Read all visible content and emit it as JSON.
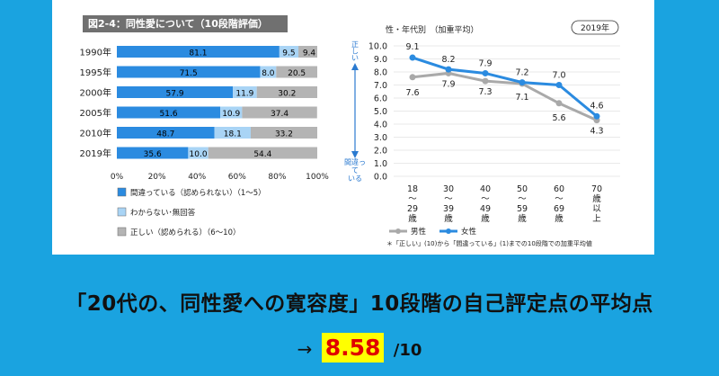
{
  "left_figure": {
    "title": "図2-4：同性愛について（10段階評価）"
  },
  "right_figure": {
    "header": "性・年代別　（加重平均）",
    "year_badge": "2019年",
    "note": "＊「正しい」(10)から「間違っている」(1)までの10段階での加重平均値"
  },
  "headline": "「20代の、同性愛への寛容度」10段階の自己評定点の平均点",
  "score": {
    "arrow": "→",
    "value": "8.58",
    "unit": "/10"
  },
  "colors": {
    "background": "#1aa3e0",
    "wrong": "#2b8be0",
    "unknown": "#a9d4f5",
    "correct": "#b4b4b4",
    "male": "#a9a9a9",
    "female": "#2b8be0",
    "highlight": "#ffff00",
    "score_text": "#e00000"
  },
  "chart_data": [
    {
      "type": "bar",
      "orientation": "horizontal-stacked-percent",
      "categories": [
        "1990年",
        "1995年",
        "2000年",
        "2005年",
        "2010年",
        "2019年"
      ],
      "series": [
        {
          "name": "間違っている（認められない）（1〜5）",
          "values": [
            81.1,
            71.5,
            57.9,
            51.6,
            48.7,
            35.6
          ]
        },
        {
          "name": "わからない･無回答",
          "values": [
            9.5,
            8.0,
            11.9,
            10.9,
            18.1,
            10.0
          ]
        },
        {
          "name": "正しい（認められる）（6〜10）",
          "values": [
            9.4,
            20.5,
            30.2,
            37.4,
            33.2,
            54.4
          ]
        }
      ],
      "x_ticks": [
        "0%",
        "20%",
        "40%",
        "60%",
        "80%",
        "100%"
      ],
      "xlim": [
        0,
        100
      ],
      "legend_placement": "bottom-left"
    },
    {
      "type": "line",
      "categories": [
        [
          "18",
          "〜",
          "29",
          "歳"
        ],
        [
          "30",
          "〜",
          "39",
          "歳"
        ],
        [
          "40",
          "〜",
          "49",
          "歳"
        ],
        [
          "50",
          "〜",
          "59",
          "歳"
        ],
        [
          "60",
          "〜",
          "69",
          "歳"
        ],
        [
          "70",
          "歳",
          "以",
          "上"
        ]
      ],
      "series": [
        {
          "name": "男性",
          "values": [
            7.6,
            7.9,
            7.3,
            7.1,
            5.6,
            4.3
          ]
        },
        {
          "name": "女性",
          "values": [
            9.1,
            8.2,
            7.9,
            7.2,
            7.0,
            4.6
          ]
        }
      ],
      "y_ticks": [
        "0.0",
        "1.0",
        "2.0",
        "3.0",
        "4.0",
        "5.0",
        "6.0",
        "7.0",
        "8.0",
        "9.0",
        "10.0"
      ],
      "ylim": [
        0,
        10
      ],
      "y_top_label": [
        "正",
        "し",
        "い"
      ],
      "y_bottom_label": [
        "間違っ",
        "て",
        "いる"
      ],
      "legend_placement": "bottom-left"
    }
  ]
}
